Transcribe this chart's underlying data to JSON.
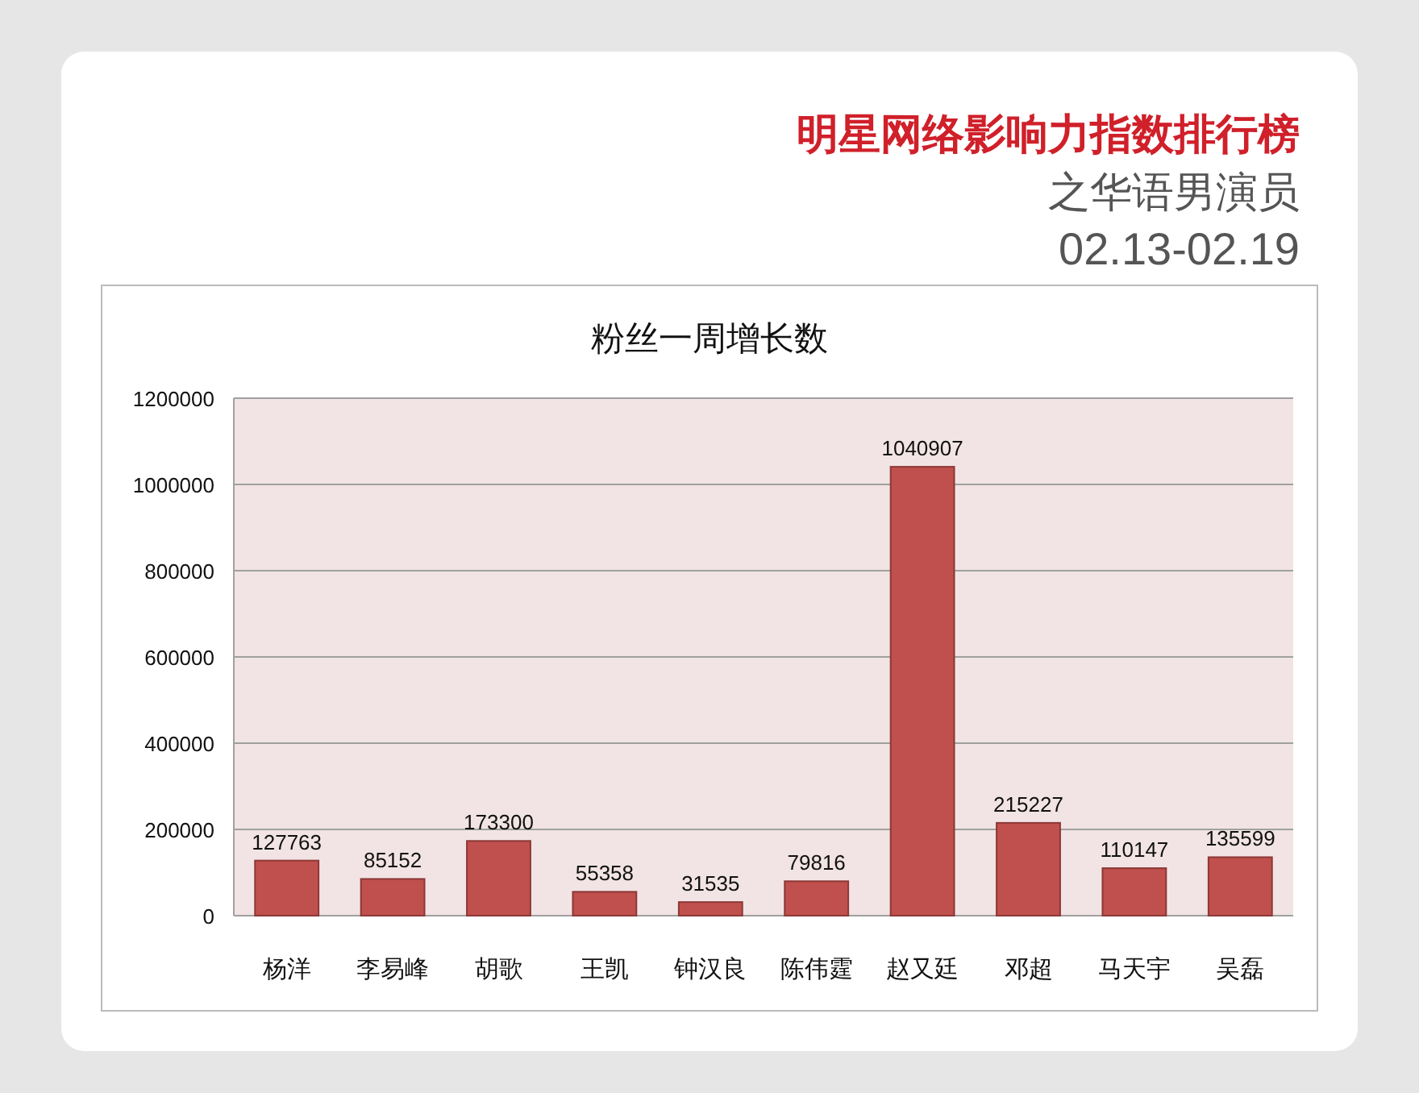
{
  "chart_data": {
    "type": "bar",
    "title": "粉丝一周增长数",
    "annotations": [
      "明星网络影响力指数排行榜",
      "之华语男演员",
      "02.13-02.19"
    ],
    "categories": [
      "杨洋",
      "李易峰",
      "胡歌",
      "王凯",
      "钟汉良",
      "陈伟霆",
      "赵又廷",
      "邓超",
      "马天宇",
      "吴磊"
    ],
    "values": [
      127763,
      85152,
      173300,
      55358,
      31535,
      79816,
      1040907,
      215227,
      110147,
      135599
    ],
    "color": "#c0504d",
    "ylim": [
      0,
      1200000
    ],
    "yticks": [
      0,
      200000,
      400000,
      600000,
      800000,
      1000000,
      1200000
    ],
    "grid": "y",
    "data_labels": true
  }
}
